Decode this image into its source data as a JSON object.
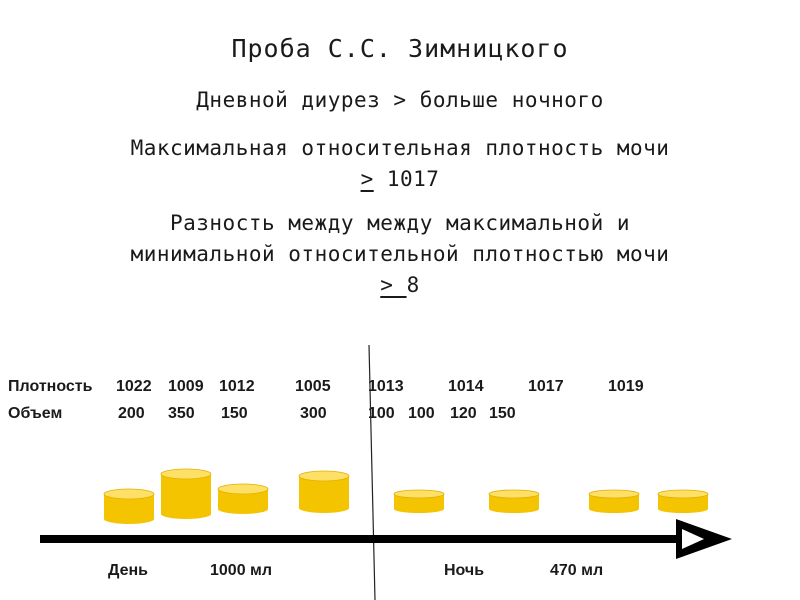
{
  "title": "Проба С.С. Зимницкого",
  "rule1": "Дневной диурез > больше ночного",
  "rule2": {
    "line_a": "Максимальная относительная плотность мочи",
    "symbol": ">",
    "value": " 1017"
  },
  "rule3": {
    "line_a": "Разность между между максимальной и",
    "line_b": "минимальной относительной плотностью мочи",
    "symbol": "> ",
    "value": "8"
  },
  "table": {
    "density_label": "Плотность",
    "volume_label": "Объем",
    "densities": [
      "1022",
      "1009",
      "1012",
      "1005",
      "1013",
      "1014",
      "1017",
      "1019"
    ],
    "volumes": [
      "200",
      "350",
      "150",
      "300",
      "100",
      "100",
      "120",
      "150"
    ]
  },
  "timeline": {
    "day_label": "День",
    "day_total": "1000 мл",
    "night_label": "Ночь",
    "night_total": "470 мл"
  },
  "colors": {
    "cylinder_fill": "#f5c400",
    "cylinder_top": "#ffe066",
    "arrow": "#000000"
  }
}
